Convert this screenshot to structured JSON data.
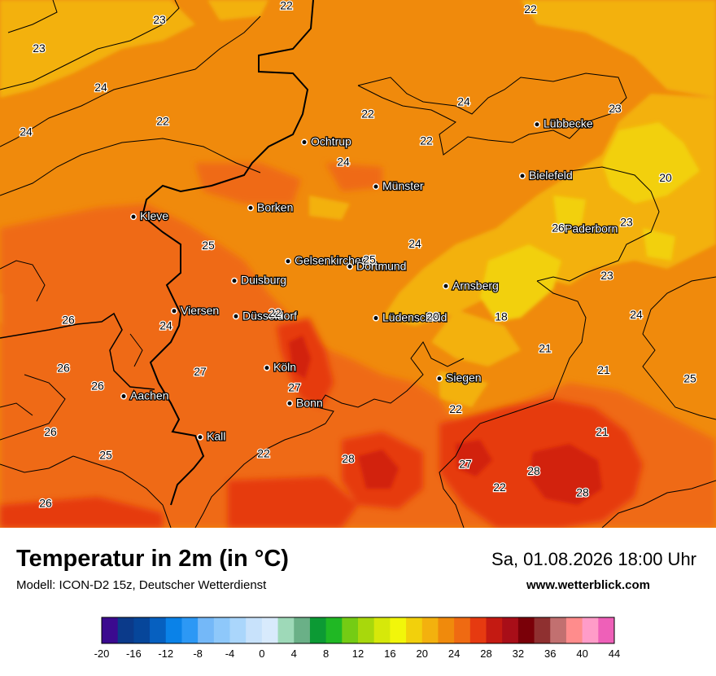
{
  "title": "Temperatur in 2m (in °C)",
  "model": "Modell: ICON-D2 15z, Deutscher Wetterdienst",
  "datetime": "Sa, 01.08.2026 18:00 Uhr",
  "website": "www.wetterblick.com",
  "colors": {
    "base": "#f08a0c",
    "cool": "#f3b10e",
    "cooler": "#f2d00c",
    "warm": "#ef6a12",
    "hot": "#e63a10",
    "hotter": "#d2200f"
  },
  "cities": [
    {
      "name": "Ochtrup",
      "lon": 7.19,
      "lat": 52.21
    },
    {
      "name": "Lübbecke",
      "lon": 8.62,
      "lat": 52.31
    },
    {
      "name": "Bielefeld",
      "lon": 8.53,
      "lat": 52.02
    },
    {
      "name": "Münster",
      "lon": 7.63,
      "lat": 51.96
    },
    {
      "name": "Borken",
      "lon": 6.86,
      "lat": 51.84
    },
    {
      "name": "Kleve",
      "lon": 6.14,
      "lat": 51.79
    },
    {
      "name": "Paderborn",
      "lon": 8.75,
      "lat": 51.72
    },
    {
      "name": "Gelsenkirchen",
      "lon": 7.09,
      "lat": 51.54
    },
    {
      "name": "Dortmund",
      "lon": 7.47,
      "lat": 51.51
    },
    {
      "name": "Duisburg",
      "lon": 6.76,
      "lat": 51.43
    },
    {
      "name": "Arnsberg",
      "lon": 8.06,
      "lat": 51.4
    },
    {
      "name": "Viersen",
      "lon": 6.39,
      "lat": 51.26
    },
    {
      "name": "Düsseldorf",
      "lon": 6.77,
      "lat": 51.23
    },
    {
      "name": "Lüdenscheid",
      "lon": 7.63,
      "lat": 51.22
    },
    {
      "name": "Köln",
      "lon": 6.96,
      "lat": 50.94
    },
    {
      "name": "Siegen",
      "lon": 8.02,
      "lat": 50.88
    },
    {
      "name": "Aachen",
      "lon": 6.08,
      "lat": 50.78
    },
    {
      "name": "Bonn",
      "lon": 7.1,
      "lat": 50.74
    },
    {
      "name": "Kall",
      "lon": 6.55,
      "lat": 50.55
    }
  ],
  "temperature_labels": [
    {
      "value": "22",
      "lon": 7.08,
      "lat": 52.98
    },
    {
      "value": "22",
      "lon": 8.58,
      "lat": 52.96
    },
    {
      "value": "23",
      "lon": 6.3,
      "lat": 52.9
    },
    {
      "value": "23",
      "lon": 5.56,
      "lat": 52.74
    },
    {
      "value": "24",
      "lon": 5.94,
      "lat": 52.52
    },
    {
      "value": "22",
      "lon": 6.32,
      "lat": 52.33
    },
    {
      "value": "22",
      "lon": 7.58,
      "lat": 52.37
    },
    {
      "value": "24",
      "lon": 8.17,
      "lat": 52.44
    },
    {
      "value": "23",
      "lon": 9.1,
      "lat": 52.4
    },
    {
      "value": "24",
      "lon": 5.48,
      "lat": 52.27
    },
    {
      "value": "22",
      "lon": 7.94,
      "lat": 52.22
    },
    {
      "value": "24",
      "lon": 7.43,
      "lat": 52.1
    },
    {
      "value": "20",
      "lon": 9.41,
      "lat": 52.01
    },
    {
      "value": "23",
      "lon": 9.17,
      "lat": 51.76
    },
    {
      "value": "26",
      "lon": 8.75,
      "lat": 51.73
    },
    {
      "value": "25",
      "lon": 6.6,
      "lat": 51.63
    },
    {
      "value": "24",
      "lon": 7.87,
      "lat": 51.64
    },
    {
      "value": "25",
      "lon": 7.59,
      "lat": 51.55
    },
    {
      "value": "23",
      "lon": 9.05,
      "lat": 51.46
    },
    {
      "value": "24",
      "lon": 9.23,
      "lat": 51.24
    },
    {
      "value": "26",
      "lon": 5.74,
      "lat": 51.21
    },
    {
      "value": "22",
      "lon": 7.01,
      "lat": 51.25
    },
    {
      "value": "20",
      "lon": 7.98,
      "lat": 51.23
    },
    {
      "value": "18",
      "lon": 8.4,
      "lat": 51.23
    },
    {
      "value": "24",
      "lon": 6.34,
      "lat": 51.18
    },
    {
      "value": "21",
      "lon": 8.67,
      "lat": 51.05
    },
    {
      "value": "26",
      "lon": 5.71,
      "lat": 50.94
    },
    {
      "value": "27",
      "lon": 6.55,
      "lat": 50.92
    },
    {
      "value": "21",
      "lon": 9.03,
      "lat": 50.93
    },
    {
      "value": "25",
      "lon": 9.56,
      "lat": 50.88
    },
    {
      "value": "26",
      "lon": 5.92,
      "lat": 50.84
    },
    {
      "value": "27",
      "lon": 7.13,
      "lat": 50.83
    },
    {
      "value": "22",
      "lon": 8.12,
      "lat": 50.71
    },
    {
      "value": "26",
      "lon": 5.63,
      "lat": 50.58
    },
    {
      "value": "21",
      "lon": 9.02,
      "lat": 50.58
    },
    {
      "value": "22",
      "lon": 6.94,
      "lat": 50.46
    },
    {
      "value": "25",
      "lon": 5.97,
      "lat": 50.45
    },
    {
      "value": "28",
      "lon": 7.46,
      "lat": 50.43
    },
    {
      "value": "27",
      "lon": 8.18,
      "lat": 50.4
    },
    {
      "value": "28",
      "lon": 8.6,
      "lat": 50.36
    },
    {
      "value": "22",
      "lon": 8.39,
      "lat": 50.27
    },
    {
      "value": "28",
      "lon": 8.9,
      "lat": 50.24
    },
    {
      "value": "26",
      "lon": 5.6,
      "lat": 50.18
    }
  ],
  "scale": {
    "min": -20,
    "max": 44,
    "step_per_band": 2,
    "tick_labels": [
      "-20",
      "-16",
      "-12",
      "-8",
      "-4",
      "0",
      "4",
      "8",
      "12",
      "16",
      "20",
      "24",
      "28",
      "32",
      "36",
      "40",
      "44"
    ],
    "colors": [
      "#3b0a8f",
      "#0b3a8a",
      "#06469a",
      "#0660c0",
      "#0a82e8",
      "#2c98f5",
      "#74b8f8",
      "#8ec8fa",
      "#aad6fb",
      "#c8e2fb",
      "#d8eafc",
      "#9ed9b8",
      "#6ab087",
      "#0c9a34",
      "#20b824",
      "#74cc14",
      "#a8d80c",
      "#d6e80a",
      "#f2f60a",
      "#f2d00c",
      "#f3b10e",
      "#f08a0c",
      "#ef6a12",
      "#e63a10",
      "#c41a12",
      "#a80e18",
      "#7a0008",
      "#8f3030",
      "#c27070",
      "#ff8c8c",
      "#ff9cc8",
      "#ee60b8"
    ]
  }
}
